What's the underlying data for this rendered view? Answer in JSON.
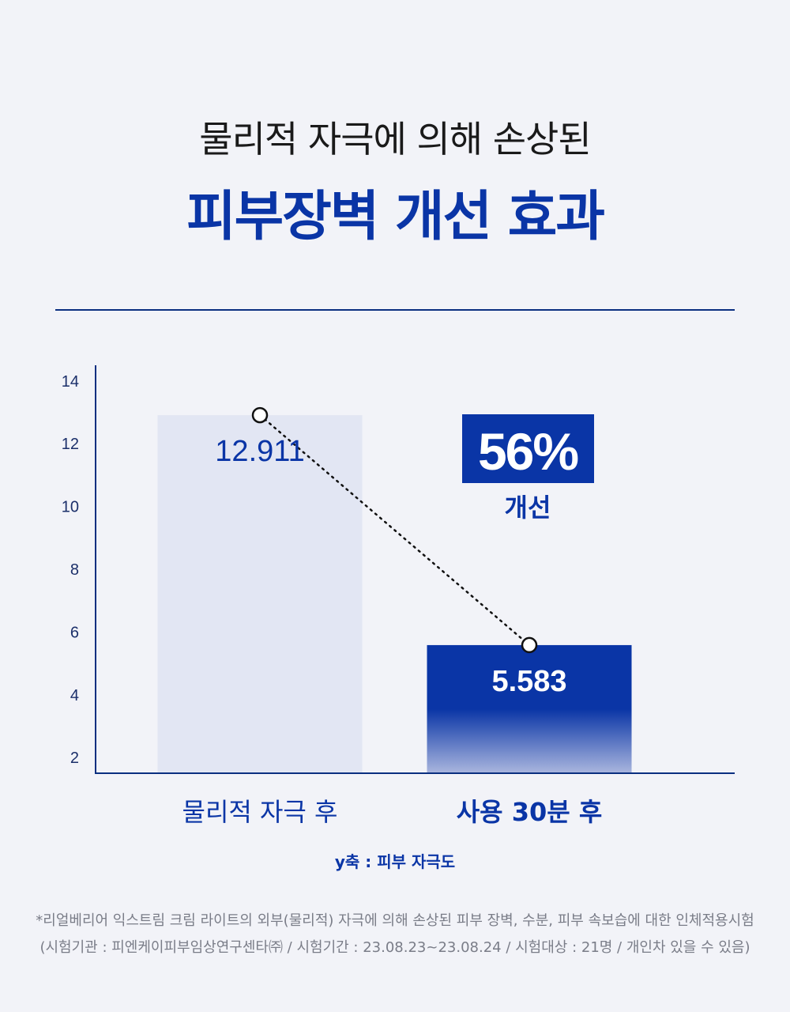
{
  "header": {
    "subtitle": "물리적 자극에 의해 손상된",
    "title": "피부장벽 개선 효과"
  },
  "colors": {
    "accent": "#0a35a6",
    "bar_before": "#e2e6f3",
    "axis": "#0a2f80"
  },
  "chart_data": {
    "type": "bar",
    "categories": [
      "물리적 자극 후",
      "사용 30분 후"
    ],
    "values": [
      12.911,
      5.583
    ],
    "value_labels": [
      "12.911",
      "5.583"
    ],
    "yticks": [
      2,
      4,
      6,
      8,
      10,
      12,
      14
    ],
    "ylim": [
      1.5,
      14.5
    ],
    "ylabel": "y축 : 피부 자극도",
    "annotation": {
      "value": "56%",
      "label": "개선"
    },
    "connector": "dotted"
  },
  "footnotes": [
    "*리얼베리어 익스트림 크림 라이트의 외부(물리적) 자극에 의해 손상된 피부 장벽, 수분, 피부 속보습에 대한 인체적용시험",
    "(시험기관 : 피엔케이피부임상연구센타㈜ / 시험기간 : 23.08.23~23.08.24 / 시험대상 : 21명 / 개인차 있을 수 있음)"
  ]
}
